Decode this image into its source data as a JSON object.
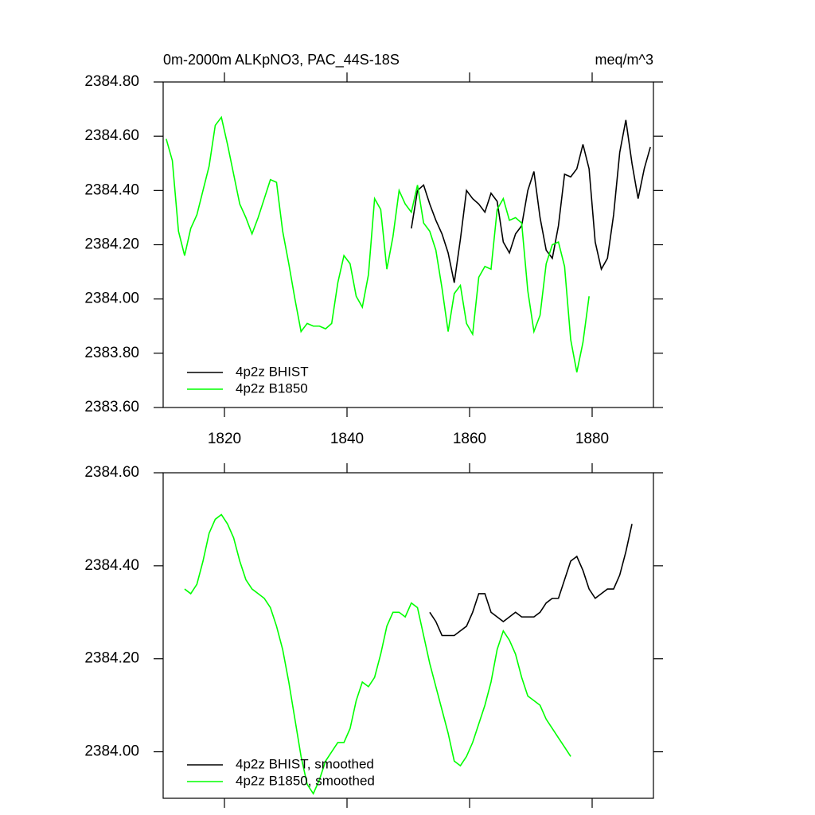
{
  "chart_data": [
    {
      "type": "line",
      "title_left": "0m-2000m ALKpNO3, PAC_44S-18S",
      "title_right": "meq/m^3",
      "x": [
        1810.5,
        1811.5,
        1812.5,
        1813.5,
        1814.5,
        1815.5,
        1816.5,
        1817.5,
        1818.5,
        1819.5,
        1820.5,
        1821.5,
        1822.5,
        1823.5,
        1824.5,
        1825.5,
        1826.5,
        1827.5,
        1828.5,
        1829.5,
        1830.5,
        1831.5,
        1832.5,
        1833.5,
        1834.5,
        1835.5,
        1836.5,
        1837.5,
        1838.5,
        1839.5,
        1840.5,
        1841.5,
        1842.5,
        1843.5,
        1844.5,
        1845.5,
        1846.5,
        1847.5,
        1848.5,
        1849.5,
        1850.5,
        1851.5,
        1852.5,
        1853.5,
        1854.5,
        1855.5,
        1856.5,
        1857.5,
        1858.5,
        1859.5,
        1860.5,
        1861.5,
        1862.5,
        1863.5,
        1864.5,
        1865.5,
        1866.5,
        1867.5,
        1868.5,
        1869.5,
        1870.5,
        1871.5,
        1872.5,
        1873.5,
        1874.5,
        1875.5,
        1876.5,
        1877.5,
        1878.5,
        1879.5,
        1880.5,
        1881.5,
        1882.5,
        1883.5,
        1884.5,
        1885.5,
        1886.5,
        1887.5,
        1888.5,
        1889.5
      ],
      "series": [
        {
          "name": "4p2z BHIST",
          "color": "#000000",
          "values": [
            null,
            null,
            null,
            null,
            null,
            null,
            null,
            null,
            null,
            null,
            null,
            null,
            null,
            null,
            null,
            null,
            null,
            null,
            null,
            null,
            null,
            null,
            null,
            null,
            null,
            null,
            null,
            null,
            null,
            null,
            null,
            null,
            null,
            null,
            null,
            null,
            null,
            null,
            null,
            null,
            2384.26,
            2384.4,
            2384.42,
            2384.35,
            2384.29,
            2384.24,
            2384.17,
            2384.06,
            2384.22,
            2384.4,
            2384.37,
            2384.35,
            2384.32,
            2384.39,
            2384.36,
            2384.21,
            2384.17,
            2384.24,
            2384.27,
            2384.4,
            2384.47,
            2384.3,
            2384.18,
            2384.15,
            2384.27,
            2384.46,
            2384.45,
            2384.48,
            2384.57,
            2384.48,
            2384.21,
            2384.11,
            2384.15,
            2384.31,
            2384.54,
            2384.66,
            2384.5,
            2384.37,
            2384.48,
            2384.56
          ]
        },
        {
          "name": "4p2z B1850",
          "color": "#00ff00",
          "values": [
            2384.59,
            2384.51,
            2384.25,
            2384.16,
            2384.26,
            2384.31,
            2384.4,
            2384.49,
            2384.64,
            2384.67,
            2384.57,
            2384.46,
            2384.35,
            2384.3,
            2384.24,
            2384.3,
            2384.37,
            2384.44,
            2384.43,
            2384.25,
            2384.13,
            2384.0,
            2383.88,
            2383.91,
            2383.9,
            2383.9,
            2383.89,
            2383.91,
            2384.06,
            2384.16,
            2384.13,
            2384.01,
            2383.97,
            2384.09,
            2384.37,
            2384.33,
            2384.11,
            2384.23,
            2384.4,
            2384.35,
            2384.32,
            2384.42,
            2384.28,
            2384.25,
            2384.18,
            2384.04,
            2383.88,
            2384.02,
            2384.05,
            2383.91,
            2383.87,
            2384.08,
            2384.12,
            2384.11,
            2384.33,
            2384.37,
            2384.29,
            2384.3,
            2384.28,
            2384.03,
            2383.88,
            2383.94,
            2384.13,
            2384.2,
            2384.21,
            2384.12,
            2383.85,
            2383.73,
            2383.84,
            2384.01,
            null,
            null,
            null,
            null,
            null,
            null,
            null,
            null,
            null,
            null
          ]
        }
      ],
      "xlim": [
        1810,
        1890
      ],
      "xticks": [
        1820,
        1840,
        1860,
        1880
      ],
      "ylim": [
        2383.6,
        2384.8
      ],
      "yticks": [
        {
          "value": 2383.6,
          "label": "2383.60"
        },
        {
          "value": 2383.8,
          "label": "2383.80"
        },
        {
          "value": 2384.0,
          "label": "2384.00"
        },
        {
          "value": 2384.2,
          "label": "2384.20"
        },
        {
          "value": 2384.4,
          "label": "2384.40"
        },
        {
          "value": 2384.6,
          "label": "2384.60"
        },
        {
          "value": 2384.8,
          "label": "2384.80"
        }
      ],
      "grid": false,
      "legend": "lower left"
    },
    {
      "type": "line",
      "x": [
        1813.5,
        1814.5,
        1815.5,
        1816.5,
        1817.5,
        1818.5,
        1819.5,
        1820.5,
        1821.5,
        1822.5,
        1823.5,
        1824.5,
        1825.5,
        1826.5,
        1827.5,
        1828.5,
        1829.5,
        1830.5,
        1831.5,
        1832.5,
        1833.5,
        1834.5,
        1835.5,
        1836.5,
        1837.5,
        1838.5,
        1839.5,
        1840.5,
        1841.5,
        1842.5,
        1843.5,
        1844.5,
        1845.5,
        1846.5,
        1847.5,
        1848.5,
        1849.5,
        1850.5,
        1851.5,
        1852.5,
        1853.5,
        1854.5,
        1855.5,
        1856.5,
        1857.5,
        1858.5,
        1859.5,
        1860.5,
        1861.5,
        1862.5,
        1863.5,
        1864.5,
        1865.5,
        1866.5,
        1867.5,
        1868.5,
        1869.5,
        1870.5,
        1871.5,
        1872.5,
        1873.5,
        1874.5,
        1875.5,
        1876.5,
        1877.5,
        1878.5,
        1879.5,
        1880.5,
        1881.5,
        1882.5,
        1883.5,
        1884.5,
        1885.5,
        1886.5
      ],
      "series": [
        {
          "name": "4p2z BHIST, smoothed",
          "color": "#000000",
          "values": [
            null,
            null,
            null,
            null,
            null,
            null,
            null,
            null,
            null,
            null,
            null,
            null,
            null,
            null,
            null,
            null,
            null,
            null,
            null,
            null,
            null,
            null,
            null,
            null,
            null,
            null,
            null,
            null,
            null,
            null,
            null,
            null,
            null,
            null,
            null,
            null,
            null,
            null,
            null,
            null,
            2384.3,
            2384.28,
            2384.25,
            2384.25,
            2384.25,
            2384.26,
            2384.27,
            2384.3,
            2384.34,
            2384.34,
            2384.3,
            2384.29,
            2384.28,
            2384.29,
            2384.3,
            2384.29,
            2384.29,
            2384.29,
            2384.3,
            2384.32,
            2384.33,
            2384.33,
            2384.37,
            2384.41,
            2384.42,
            2384.39,
            2384.35,
            2384.33,
            2384.34,
            2384.35,
            2384.35,
            2384.38,
            2384.43,
            2384.49
          ]
        },
        {
          "name": "4p2z B1850, smoothed",
          "color": "#00ff00",
          "values": [
            2384.35,
            2384.34,
            2384.36,
            2384.41,
            2384.47,
            2384.5,
            2384.51,
            2384.49,
            2384.46,
            2384.41,
            2384.37,
            2384.35,
            2384.34,
            2384.33,
            2384.31,
            2384.27,
            2384.22,
            2384.15,
            2384.07,
            2383.99,
            2383.93,
            2383.91,
            2383.94,
            2383.98,
            2384.0,
            2384.02,
            2384.02,
            2384.05,
            2384.11,
            2384.15,
            2384.14,
            2384.16,
            2384.21,
            2384.27,
            2384.3,
            2384.3,
            2384.29,
            2384.32,
            2384.31,
            2384.25,
            2384.19,
            2384.14,
            2384.09,
            2384.04,
            2383.98,
            2383.97,
            2383.99,
            2384.02,
            2384.06,
            2384.1,
            2384.15,
            2384.22,
            2384.26,
            2384.24,
            2384.21,
            2384.16,
            2384.12,
            2384.11,
            2384.1,
            2384.07,
            2384.05,
            2384.03,
            2384.01,
            2383.99,
            null,
            null,
            null,
            null,
            null,
            null,
            null,
            null,
            null,
            null
          ]
        }
      ],
      "xlim": [
        1810,
        1890
      ],
      "ylim": [
        2383.9,
        2384.6
      ],
      "yticks": [
        {
          "value": 2384.0,
          "label": "2384.00"
        },
        {
          "value": 2384.2,
          "label": "2384.20"
        },
        {
          "value": 2384.4,
          "label": "2384.40"
        },
        {
          "value": 2384.6,
          "label": "2384.60"
        }
      ],
      "grid": false,
      "legend": "lower left"
    }
  ]
}
